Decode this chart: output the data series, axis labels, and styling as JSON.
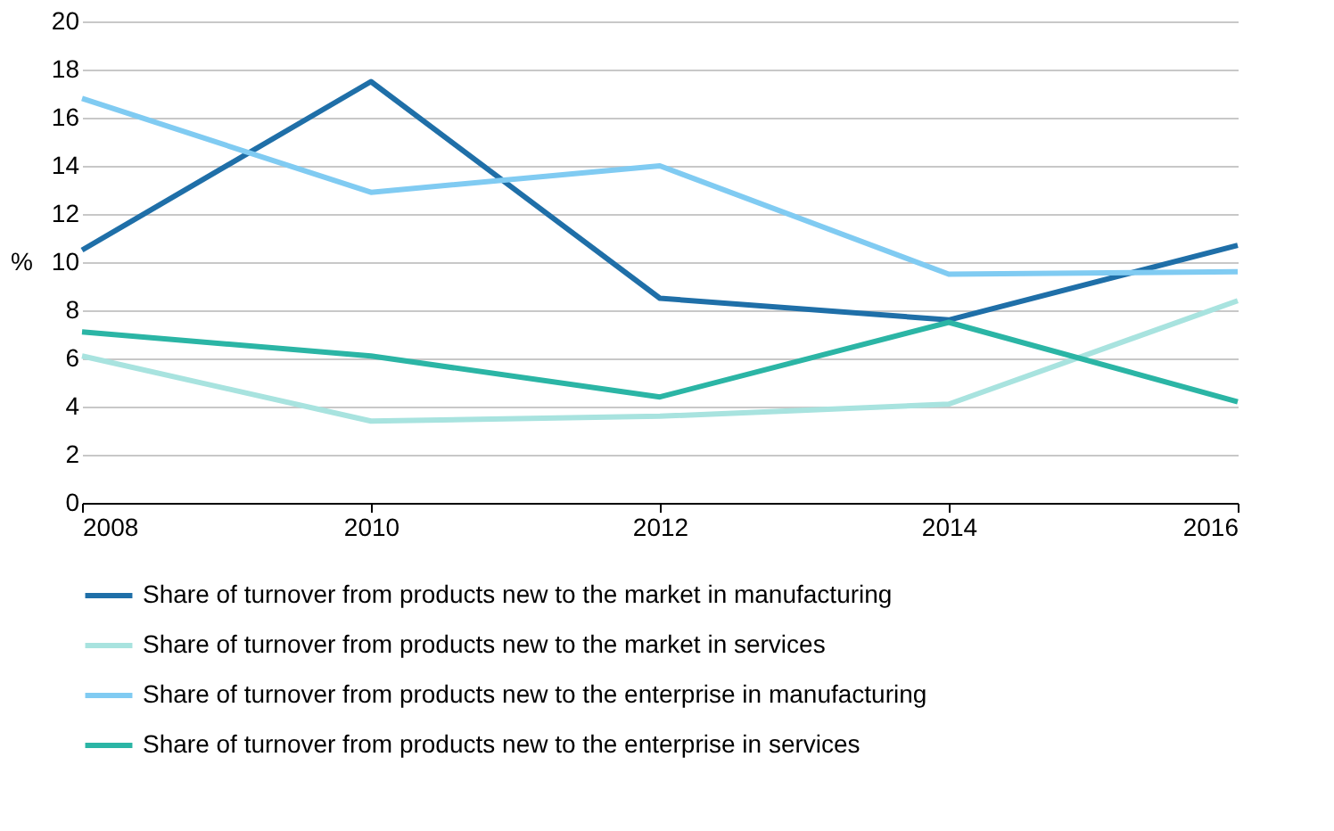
{
  "chart_data": {
    "type": "line",
    "ylabel": "%",
    "x": [
      2008,
      2010,
      2012,
      2014,
      2016
    ],
    "xlim": [
      2008,
      2016
    ],
    "xticks": [
      2008,
      2010,
      2012,
      2014,
      2016
    ],
    "ylim": [
      0,
      20
    ],
    "yticks": [
      0,
      2,
      4,
      6,
      8,
      10,
      12,
      14,
      16,
      18,
      20
    ],
    "grid": "y",
    "legend": "bottom",
    "marker": "none",
    "line_style": "solid",
    "series": [
      {
        "name": "Share of turnover from products new to the market in manufacturing",
        "color": "#1f6fa8",
        "values": [
          10.5,
          17.5,
          8.5,
          7.6,
          10.7
        ]
      },
      {
        "name": "Share of turnover from products new to the market in services",
        "color": "#a8e3df",
        "values": [
          6.1,
          3.4,
          3.6,
          4.1,
          8.4
        ]
      },
      {
        "name": "Share of turnover from products new to the enterprise in manufacturing",
        "color": "#80cbf2",
        "values": [
          16.8,
          12.9,
          14.0,
          9.5,
          9.6
        ]
      },
      {
        "name": "Share of turnover from products new to the enterprise in services",
        "color": "#2bb5a5",
        "values": [
          7.1,
          6.1,
          4.4,
          7.5,
          4.2
        ]
      }
    ]
  }
}
